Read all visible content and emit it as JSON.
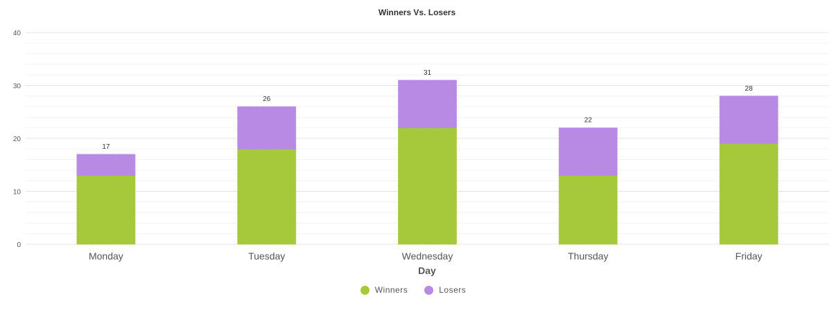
{
  "chart_data": {
    "type": "bar",
    "stacked": true,
    "title": "Winners Vs. Losers",
    "xlabel": "Day",
    "ylabel": "",
    "ylim": [
      0,
      40
    ],
    "yticks": [
      0,
      10,
      20,
      30,
      40
    ],
    "categories": [
      "Monday",
      "Tuesday",
      "Wednesday",
      "Thursday",
      "Friday"
    ],
    "series": [
      {
        "name": "Winners",
        "color": "#a5c93a",
        "values": [
          13,
          18,
          22,
          13,
          19
        ]
      },
      {
        "name": "Losers",
        "color": "#b98ae3",
        "values": [
          4,
          8,
          9,
          9,
          9
        ]
      }
    ],
    "totals": [
      "17",
      "26",
      "31",
      "22",
      "28"
    ],
    "grid": true,
    "legend_position": "bottom"
  }
}
